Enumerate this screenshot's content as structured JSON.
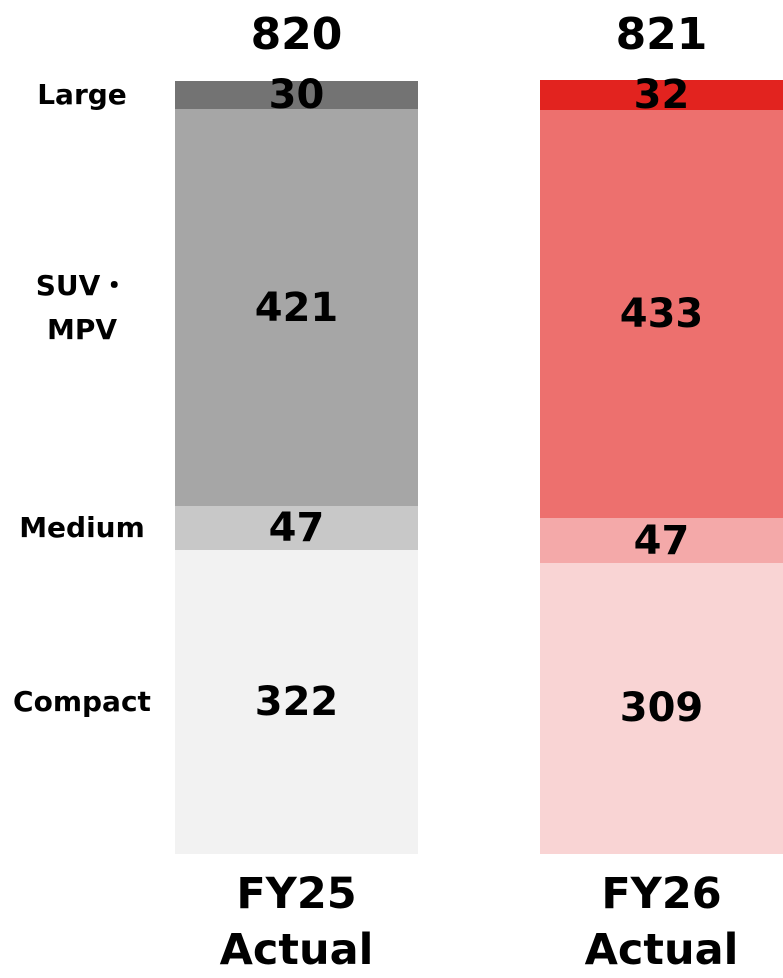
{
  "chart_data": {
    "type": "stacked-bar",
    "categories": [
      "FY25 Actual",
      "FY26 Actual"
    ],
    "totals": [
      820,
      821
    ],
    "series": [
      {
        "name": "Compact",
        "colors": [
          "#f2f2f2",
          "#f9d4d4"
        ],
        "values": [
          322,
          309
        ]
      },
      {
        "name": "Medium",
        "colors": [
          "#c8c8c8",
          "#f4a9a9"
        ],
        "values": [
          47,
          47
        ]
      },
      {
        "name": "SUV・MPV",
        "colors": [
          "#a6a6a6",
          "#ed706e"
        ],
        "values": [
          421,
          433
        ]
      },
      {
        "name": "Large",
        "colors": [
          "#737373",
          "#e2231f"
        ],
        "values": [
          30,
          32
        ]
      }
    ],
    "ylim": [
      0,
      821
    ]
  }
}
